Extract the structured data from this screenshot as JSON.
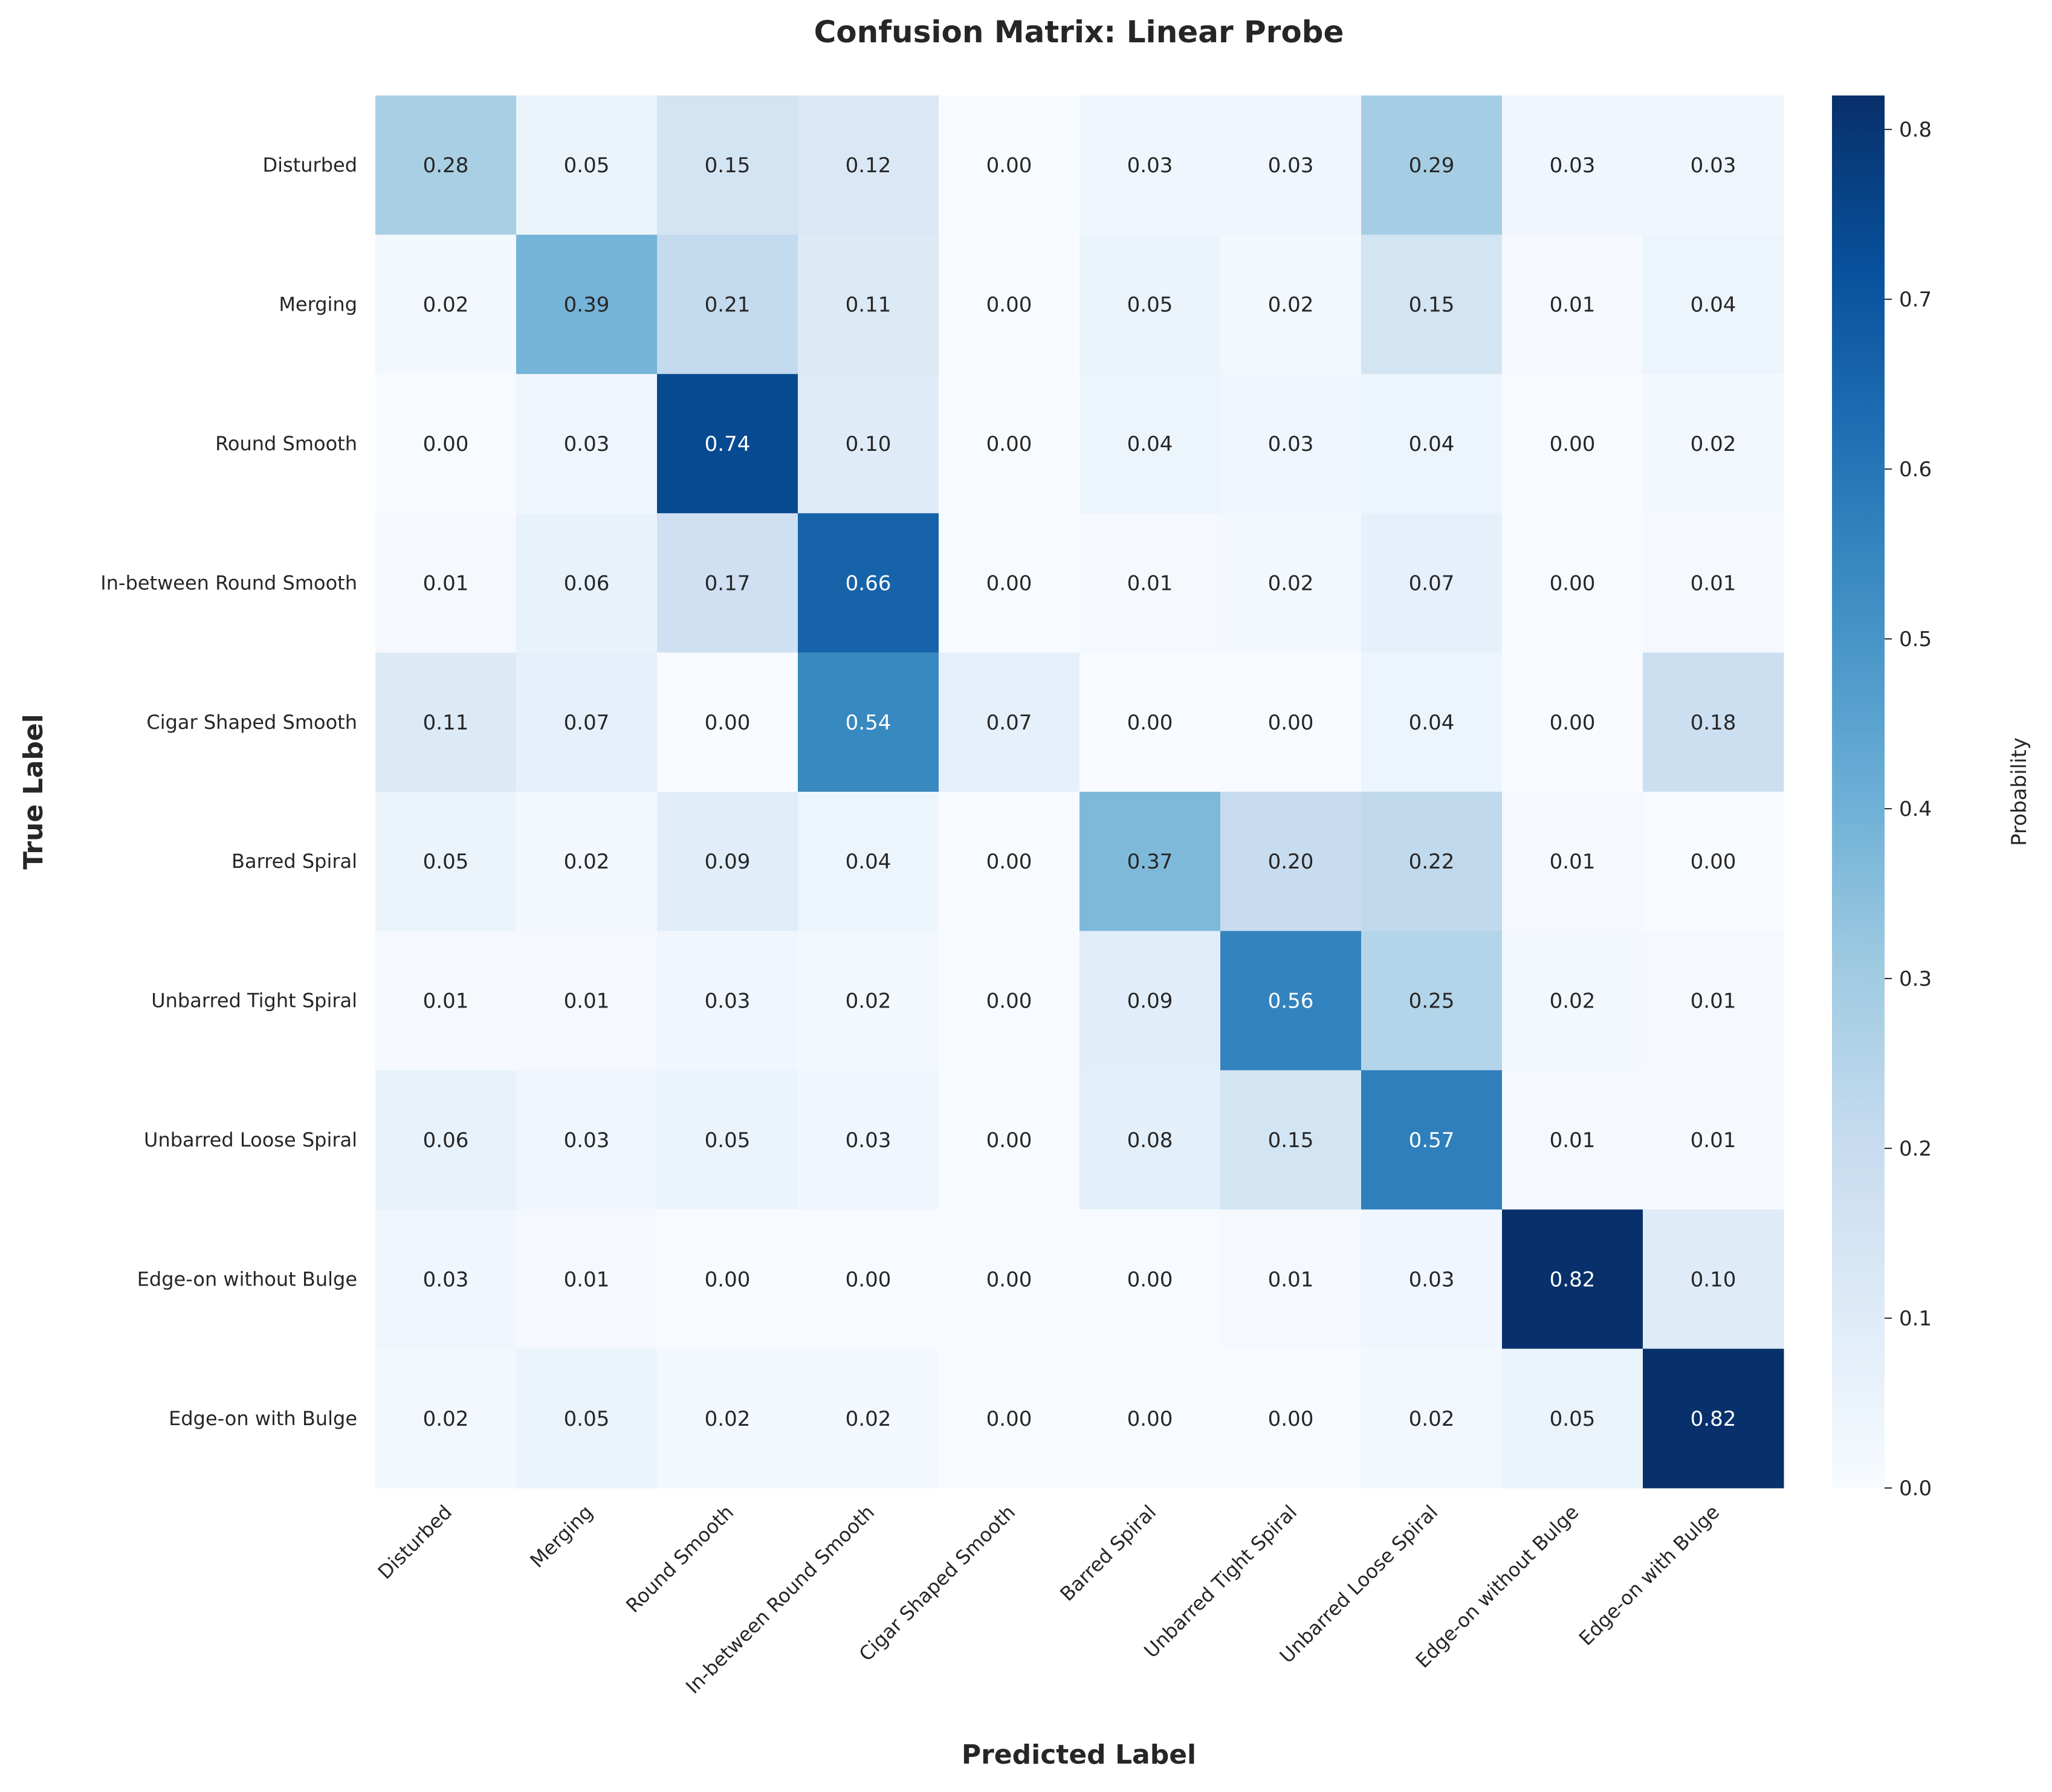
{
  "chart_data": {
    "type": "heatmap",
    "title": "Confusion Matrix: Linear Probe",
    "xlabel": "Predicted Label",
    "ylabel": "True Label",
    "colorbar_label": "Probability",
    "colormap": "Blues",
    "color_range": [
      0.0,
      0.82
    ],
    "colorbar_ticks": [
      "0.0",
      "0.1",
      "0.2",
      "0.3",
      "0.4",
      "0.5",
      "0.6",
      "0.7",
      "0.8"
    ],
    "categories": [
      "Disturbed",
      "Merging",
      "Round Smooth",
      "In-between Round Smooth",
      "Cigar Shaped Smooth",
      "Barred Spiral",
      "Unbarred Tight Spiral",
      "Unbarred Loose Spiral",
      "Edge-on without Bulge",
      "Edge-on with Bulge"
    ],
    "values": [
      [
        0.28,
        0.05,
        0.15,
        0.12,
        0.0,
        0.03,
        0.03,
        0.29,
        0.03,
        0.03
      ],
      [
        0.02,
        0.39,
        0.21,
        0.11,
        0.0,
        0.05,
        0.02,
        0.15,
        0.01,
        0.04
      ],
      [
        0.0,
        0.03,
        0.74,
        0.1,
        0.0,
        0.04,
        0.03,
        0.04,
        0.0,
        0.02
      ],
      [
        0.01,
        0.06,
        0.17,
        0.66,
        0.0,
        0.01,
        0.02,
        0.07,
        0.0,
        0.01
      ],
      [
        0.11,
        0.07,
        0.0,
        0.54,
        0.07,
        0.0,
        0.0,
        0.04,
        0.0,
        0.18
      ],
      [
        0.05,
        0.02,
        0.09,
        0.04,
        0.0,
        0.37,
        0.2,
        0.22,
        0.01,
        0.0
      ],
      [
        0.01,
        0.01,
        0.03,
        0.02,
        0.0,
        0.09,
        0.56,
        0.25,
        0.02,
        0.01
      ],
      [
        0.06,
        0.03,
        0.05,
        0.03,
        0.0,
        0.08,
        0.15,
        0.57,
        0.01,
        0.01
      ],
      [
        0.03,
        0.01,
        0.0,
        0.0,
        0.0,
        0.0,
        0.01,
        0.03,
        0.82,
        0.1
      ],
      [
        0.02,
        0.05,
        0.02,
        0.02,
        0.0,
        0.0,
        0.0,
        0.02,
        0.05,
        0.82
      ]
    ],
    "grid": false
  }
}
